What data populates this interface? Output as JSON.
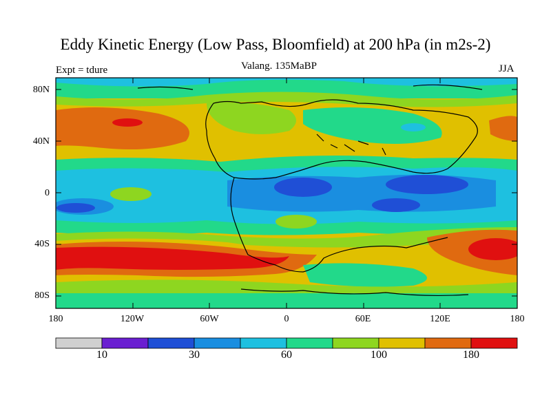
{
  "title": "Eddy Kinetic Energy (Low Pass, Bloomfield) at 200 hPa (in m2s-2)",
  "subtitle_left": "Expt = tdure",
  "subtitle_center": "Valang.  135MaBP",
  "subtitle_right": "JJA",
  "lat_ticks": [
    "80N",
    "40N",
    "0",
    "40S",
    "80S"
  ],
  "lon_ticks": [
    "180",
    "120W",
    "60W",
    "0",
    "60E",
    "120E",
    "180"
  ],
  "colorbar": {
    "colors": [
      "#d0d0d0",
      "#6a1fd1",
      "#1f4fd6",
      "#1a8ee0",
      "#1ec0e0",
      "#22d98a",
      "#8ed620",
      "#e0c000",
      "#e06a10",
      "#e01010"
    ],
    "labels": [
      "10",
      "30",
      "60",
      "100",
      "180"
    ]
  },
  "colors": {
    "red": "#e01010",
    "orange": "#e06a10",
    "yellow": "#e0c000",
    "lightgreen": "#8ed620",
    "green": "#22d98a",
    "cyan": "#1ec0e0",
    "lightblue": "#1a8ee0",
    "blue": "#1f4fd6"
  }
}
